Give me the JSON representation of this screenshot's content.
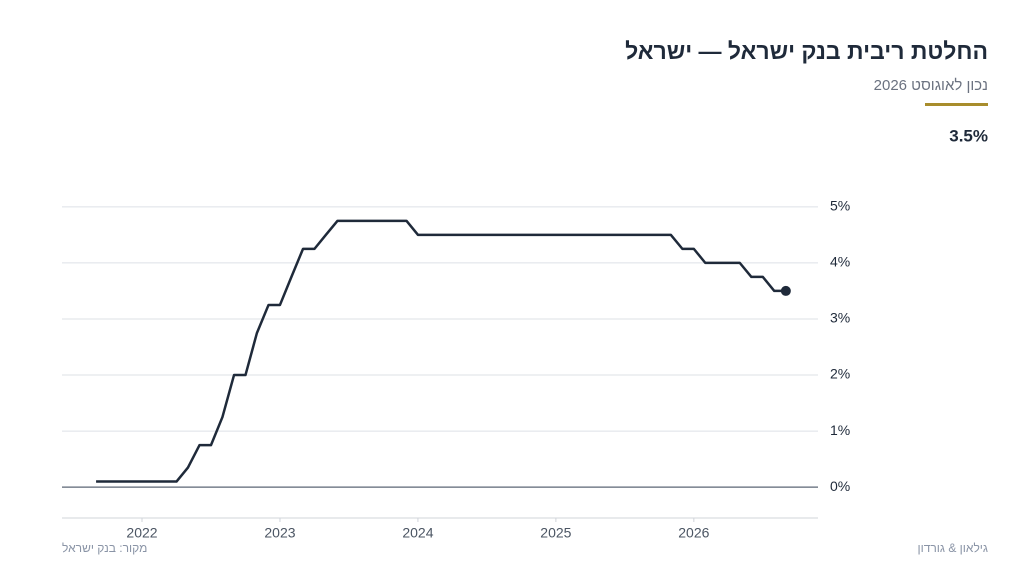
{
  "chart_data": {
    "type": "line",
    "title": "החלטת ריבית בנק ישראל — ישראל",
    "subtitle": "נכון לאוגוסט 2026",
    "headline": "3.5%",
    "source": "מקור: בנק ישראל",
    "brand": "גילאון & גורדון",
    "color": "#1f2a3a",
    "x": [
      2021.667,
      2021.75,
      2021.833,
      2021.917,
      2022,
      2022.083,
      2022.167,
      2022.25,
      2022.333,
      2022.417,
      2022.5,
      2022.583,
      2022.667,
      2022.75,
      2022.833,
      2022.917,
      2023,
      2023.083,
      2023.167,
      2023.25,
      2023.333,
      2023.417,
      2023.5,
      2023.583,
      2023.667,
      2023.75,
      2023.833,
      2023.917,
      2024,
      2024.083,
      2024.167,
      2024.25,
      2024.333,
      2024.417,
      2024.5,
      2024.583,
      2024.667,
      2024.75,
      2024.833,
      2024.917,
      2025,
      2025.083,
      2025.167,
      2025.25,
      2025.333,
      2025.417,
      2025.5,
      2025.583,
      2025.667,
      2025.75,
      2025.833,
      2025.917,
      2026,
      2026.083,
      2026.167,
      2026.25,
      2026.333,
      2026.417,
      2026.5,
      2026.583,
      2026.667
    ],
    "values": [
      0.1,
      0.1,
      0.1,
      0.1,
      0.1,
      0.1,
      0.1,
      0.1,
      0.35,
      0.75,
      0.75,
      1.25,
      2,
      2,
      2.75,
      3.25,
      3.25,
      3.75,
      4.25,
      4.25,
      4.5,
      4.75,
      4.75,
      4.75,
      4.75,
      4.75,
      4.75,
      4.75,
      4.5,
      4.5,
      4.5,
      4.5,
      4.5,
      4.5,
      4.5,
      4.5,
      4.5,
      4.5,
      4.5,
      4.5,
      4.5,
      4.5,
      4.5,
      4.5,
      4.5,
      4.5,
      4.5,
      4.5,
      4.5,
      4.5,
      4.5,
      4.25,
      4.25,
      4,
      4,
      4,
      4,
      3.75,
      3.75,
      3.5,
      3.5
    ],
    "xlim": [
      2021.42,
      2026.9
    ],
    "xticks": [
      2022,
      2023,
      2024,
      2025,
      2026
    ],
    "ylim": [
      -0.55,
      5.3
    ],
    "yticks": [
      {
        "value": 0,
        "label": "0%"
      },
      {
        "value": 1,
        "label": "1%"
      },
      {
        "value": 2,
        "label": "2%"
      },
      {
        "value": 3,
        "label": "3%"
      },
      {
        "value": 4,
        "label": "4%"
      },
      {
        "value": 5,
        "label": "5%"
      }
    ],
    "grid": true
  }
}
